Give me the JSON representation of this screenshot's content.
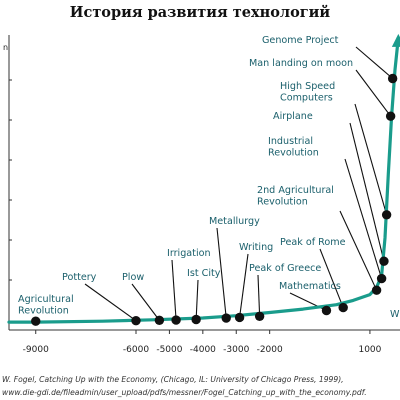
{
  "chart_data": {
    "type": "line",
    "title": "История развития технологий",
    "ylabel": "n",
    "xlim": [
      -9800,
      1900
    ],
    "ylim": [
      0,
      100
    ],
    "grid": false,
    "legend": "none",
    "line_color": "#1a9c8c",
    "marker_color": "#111111",
    "label_color": "#1a5f6b",
    "x_ticks": [
      -9000,
      -6000,
      -5000,
      -4000,
      -3000,
      -2000,
      1000
    ],
    "x_tick_labels": [
      "-9000",
      "-6000",
      "-5000",
      "-4000",
      "-3000",
      "-2000",
      "1000"
    ],
    "series": [
      {
        "x": [
          -9800,
          -9000,
          -7000,
          -5500,
          -4000,
          -3000,
          -2000,
          -1000,
          0,
          500,
          1000,
          1200,
          1350,
          1450,
          1550,
          1650,
          1750,
          1850
        ],
        "y": [
          1,
          1,
          1.3,
          1.8,
          2.4,
          3.2,
          4.3,
          5.5,
          7,
          8.5,
          10.5,
          13,
          17,
          30,
          52,
          72,
          88,
          99
        ]
      }
    ],
    "events": [
      {
        "label": "Agricultural",
        "label2": "Revolution",
        "x": -9000,
        "y": 1.3
      },
      {
        "label": "Pottery",
        "x": -6000,
        "y": 1.5
      },
      {
        "label": "Plow",
        "x": -5300,
        "y": 1.6
      },
      {
        "label": "Irrigation",
        "x": -4800,
        "y": 1.7
      },
      {
        "label": "Ist City",
        "x": -4200,
        "y": 1.9
      },
      {
        "label": "Metallurgy",
        "x": -3300,
        "y": 2.4
      },
      {
        "label": "Writing",
        "x": -2900,
        "y": 2.6
      },
      {
        "label": "Peak of Greece",
        "x": -2300,
        "y": 3.0
      },
      {
        "label": "Mathematics",
        "x": -300,
        "y": 5.0
      },
      {
        "label": "Peak of Rome",
        "x": 200,
        "y": 6.0
      },
      {
        "label": "2nd Agricultural",
        "label2": "Revolution",
        "x": 1200,
        "y": 12
      },
      {
        "label": "Industrial",
        "label2": "Revolution",
        "x": 1350,
        "y": 16
      },
      {
        "label": "Airplane",
        "x": 1420,
        "y": 22
      },
      {
        "label": "High Speed",
        "label2": "Computers",
        "x": 1500,
        "y": 38
      },
      {
        "label": "Man landing on moon",
        "x": 1620,
        "y": 72
      },
      {
        "label": "Genome Project",
        "x": 1680,
        "y": 85
      }
    ],
    "edge_label": "W"
  },
  "caption": {
    "line1": "W. Fogel, Catching Up with the Economy, (Chicago, IL: University of Chicago Press, 1999),",
    "line2": "www.die-gdi.de/fileadmin/user_upload/pdfs/messner/Fogel_Catching_up_with_the_economy.pdf."
  }
}
